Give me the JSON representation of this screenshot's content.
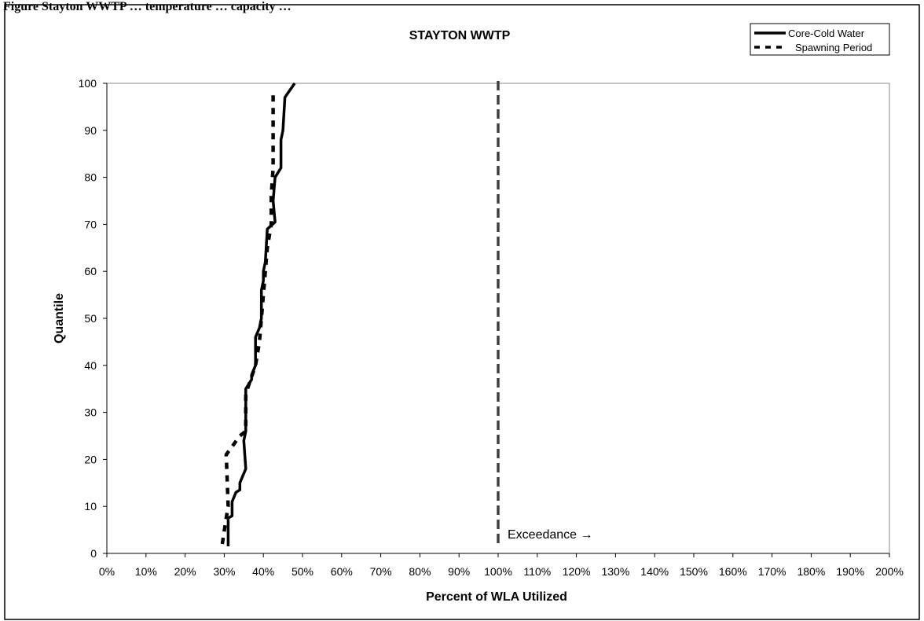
{
  "page_heading": "Figure    Stayton WWTP … temperature … capacity …",
  "chart_data": {
    "type": "line",
    "title": "STAYTON WWTP",
    "xlabel": "Percent of  WLA Utilized",
    "ylabel": "Quantile",
    "xlim": [
      0,
      200
    ],
    "ylim": [
      0,
      100
    ],
    "x_ticks": [
      "0%",
      "10%",
      "20%",
      "30%",
      "40%",
      "50%",
      "60%",
      "70%",
      "80%",
      "90%",
      "100%",
      "110%",
      "120%",
      "130%",
      "140%",
      "150%",
      "160%",
      "170%",
      "180%",
      "190%",
      "200%"
    ],
    "y_ticks": [
      "0",
      "10",
      "20",
      "30",
      "40",
      "50",
      "60",
      "70",
      "80",
      "90",
      "100"
    ],
    "grid": false,
    "legend_position": "top-right",
    "series": [
      {
        "name": "Core-Cold Water",
        "style": "solid",
        "color": "#000000",
        "points": [
          [
            31,
            1.5
          ],
          [
            31,
            7.5
          ],
          [
            32,
            8
          ],
          [
            32,
            11
          ],
          [
            33,
            13
          ],
          [
            34,
            13.5
          ],
          [
            34,
            15
          ],
          [
            35,
            17
          ],
          [
            35.5,
            18
          ],
          [
            35,
            24
          ],
          [
            35.5,
            26
          ],
          [
            35.5,
            35
          ],
          [
            37,
            37
          ],
          [
            37,
            38
          ],
          [
            38,
            40
          ],
          [
            38,
            46
          ],
          [
            39,
            48
          ],
          [
            39.5,
            50
          ],
          [
            39.5,
            56
          ],
          [
            40,
            58
          ],
          [
            40,
            60
          ],
          [
            40.5,
            62
          ],
          [
            41,
            69
          ],
          [
            43,
            70.5
          ],
          [
            42.5,
            75
          ],
          [
            43,
            80
          ],
          [
            44.5,
            82
          ],
          [
            44.5,
            88
          ],
          [
            45,
            90
          ],
          [
            45.5,
            97
          ],
          [
            48,
            100
          ]
        ]
      },
      {
        "name": "Spawning Period",
        "style": "dashed",
        "color": "#000000",
        "points": [
          [
            29.5,
            2
          ],
          [
            30.5,
            7.5
          ],
          [
            31,
            10
          ],
          [
            30.5,
            21
          ],
          [
            34,
            25
          ],
          [
            35.5,
            26
          ],
          [
            35.5,
            34
          ],
          [
            38,
            40
          ],
          [
            39,
            45
          ],
          [
            39.5,
            50
          ],
          [
            40,
            55
          ],
          [
            40.5,
            60
          ],
          [
            41,
            65
          ],
          [
            42,
            70
          ],
          [
            42,
            76
          ],
          [
            42.5,
            82
          ],
          [
            42.5,
            88
          ],
          [
            42.5,
            93
          ],
          [
            42.5,
            98
          ]
        ]
      }
    ],
    "reference_line": {
      "x": 100,
      "style": "dashed",
      "color": "#404040"
    },
    "annotation": {
      "text": "Exceedance →",
      "x": 100,
      "y": 3
    }
  }
}
